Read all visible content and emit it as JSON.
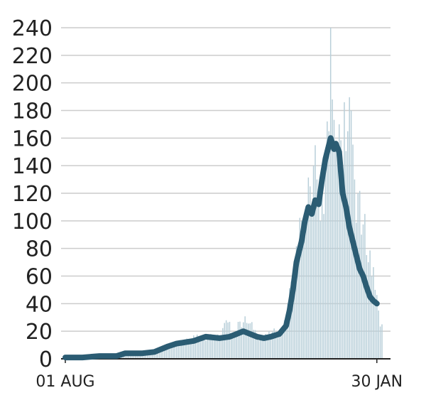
{
  "chart_data": {
    "type": "bar",
    "title": "",
    "xlabel": "",
    "ylabel": "",
    "ylim": [
      0,
      240
    ],
    "yticks": [
      0,
      20,
      40,
      60,
      80,
      100,
      120,
      140,
      160,
      180,
      200,
      220,
      240
    ],
    "grid": true,
    "legend": "none",
    "x_tick_labels": [
      {
        "label": "01 AUG",
        "day": 0
      },
      {
        "label": "30 JAN",
        "day": 182
      }
    ],
    "colors": {
      "bars": "#b8cfd9",
      "average_line": "#2b5c73",
      "grid": "#cccccc",
      "axis": "#222222"
    },
    "bars_sample": [
      {
        "day": 0,
        "value": 1
      },
      {
        "day": 10,
        "value": 1
      },
      {
        "day": 20,
        "value": 2
      },
      {
        "day": 30,
        "value": 3
      },
      {
        "day": 40,
        "value": 3
      },
      {
        "day": 50,
        "value": 4
      },
      {
        "day": 60,
        "value": 9
      },
      {
        "day": 70,
        "value": 14
      },
      {
        "day": 75,
        "value": 17
      },
      {
        "day": 80,
        "value": 15
      },
      {
        "day": 85,
        "value": 18
      },
      {
        "day": 90,
        "value": 14
      },
      {
        "day": 93,
        "value": 26
      },
      {
        "day": 100,
        "value": 18
      },
      {
        "day": 102,
        "value": 27
      },
      {
        "day": 106,
        "value": 26
      },
      {
        "day": 110,
        "value": 21
      },
      {
        "day": 115,
        "value": 14
      },
      {
        "day": 120,
        "value": 17
      },
      {
        "day": 125,
        "value": 20
      },
      {
        "day": 128,
        "value": 28
      },
      {
        "day": 130,
        "value": 40
      },
      {
        "day": 133,
        "value": 55
      },
      {
        "day": 136,
        "value": 80
      },
      {
        "day": 138,
        "value": 100
      },
      {
        "day": 141,
        "value": 110
      },
      {
        "day": 143,
        "value": 125
      },
      {
        "day": 145,
        "value": 140
      },
      {
        "day": 147,
        "value": 130
      },
      {
        "day": 149,
        "value": 100
      },
      {
        "day": 152,
        "value": 150
      },
      {
        "day": 154,
        "value": 165
      },
      {
        "day": 155,
        "value": 240
      },
      {
        "day": 156,
        "value": 188
      },
      {
        "day": 158,
        "value": 155
      },
      {
        "day": 160,
        "value": 170
      },
      {
        "day": 162,
        "value": 140
      },
      {
        "day": 163,
        "value": 186
      },
      {
        "day": 165,
        "value": 165
      },
      {
        "day": 167,
        "value": 180
      },
      {
        "day": 169,
        "value": 130
      },
      {
        "day": 171,
        "value": 120
      },
      {
        "day": 173,
        "value": 90
      },
      {
        "day": 175,
        "value": 105
      },
      {
        "day": 177,
        "value": 70
      },
      {
        "day": 179,
        "value": 60
      },
      {
        "day": 181,
        "value": 50
      },
      {
        "day": 183,
        "value": 35
      },
      {
        "day": 185,
        "value": 25
      }
    ],
    "average_line": [
      {
        "day": 0,
        "value": 1
      },
      {
        "day": 10,
        "value": 1
      },
      {
        "day": 20,
        "value": 2
      },
      {
        "day": 30,
        "value": 2
      },
      {
        "day": 35,
        "value": 4
      },
      {
        "day": 45,
        "value": 4
      },
      {
        "day": 52,
        "value": 5
      },
      {
        "day": 60,
        "value": 9
      },
      {
        "day": 65,
        "value": 11
      },
      {
        "day": 70,
        "value": 12
      },
      {
        "day": 75,
        "value": 13
      },
      {
        "day": 82,
        "value": 16
      },
      {
        "day": 90,
        "value": 15
      },
      {
        "day": 96,
        "value": 16
      },
      {
        "day": 100,
        "value": 18
      },
      {
        "day": 104,
        "value": 20
      },
      {
        "day": 108,
        "value": 18
      },
      {
        "day": 112,
        "value": 16
      },
      {
        "day": 116,
        "value": 15
      },
      {
        "day": 120,
        "value": 16
      },
      {
        "day": 125,
        "value": 18
      },
      {
        "day": 129,
        "value": 24
      },
      {
        "day": 131,
        "value": 35
      },
      {
        "day": 133,
        "value": 50
      },
      {
        "day": 135,
        "value": 70
      },
      {
        "day": 138,
        "value": 85
      },
      {
        "day": 140,
        "value": 100
      },
      {
        "day": 142,
        "value": 110
      },
      {
        "day": 144,
        "value": 105
      },
      {
        "day": 146,
        "value": 115
      },
      {
        "day": 148,
        "value": 112
      },
      {
        "day": 150,
        "value": 130
      },
      {
        "day": 152,
        "value": 145
      },
      {
        "day": 154,
        "value": 155
      },
      {
        "day": 155,
        "value": 160
      },
      {
        "day": 157,
        "value": 152
      },
      {
        "day": 158,
        "value": 156
      },
      {
        "day": 160,
        "value": 150
      },
      {
        "day": 162,
        "value": 120
      },
      {
        "day": 164,
        "value": 110
      },
      {
        "day": 166,
        "value": 95
      },
      {
        "day": 168,
        "value": 85
      },
      {
        "day": 170,
        "value": 75
      },
      {
        "day": 172,
        "value": 65
      },
      {
        "day": 174,
        "value": 60
      },
      {
        "day": 176,
        "value": 52
      },
      {
        "day": 178,
        "value": 45
      },
      {
        "day": 180,
        "value": 42
      },
      {
        "day": 182,
        "value": 40
      }
    ]
  }
}
